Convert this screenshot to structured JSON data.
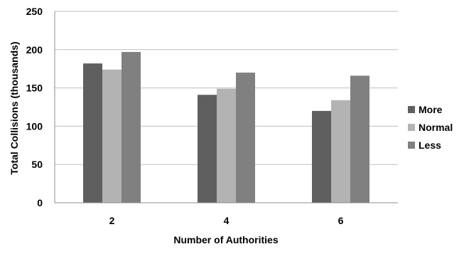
{
  "chart_data": {
    "type": "bar",
    "title": "",
    "xlabel": "Number of Authorities",
    "ylabel": "Total Collisions (thousands)",
    "categories": [
      "2",
      "4",
      "6"
    ],
    "series": [
      {
        "name": "More",
        "values": [
          182,
          141,
          120
        ],
        "color": "#5f5f5f"
      },
      {
        "name": "Normal",
        "values": [
          174,
          149,
          134
        ],
        "color": "#b3b3b3"
      },
      {
        "name": "Less",
        "values": [
          197,
          170,
          166
        ],
        "color": "#808080"
      }
    ],
    "ylim": [
      0,
      250
    ],
    "yticks": [
      "0",
      "50",
      "100",
      "150",
      "200",
      "250"
    ],
    "ytick_values": [
      0,
      50,
      100,
      150,
      200,
      250
    ],
    "grid": true,
    "grid_color": "#bfbfbf",
    "legend_position": "right"
  }
}
